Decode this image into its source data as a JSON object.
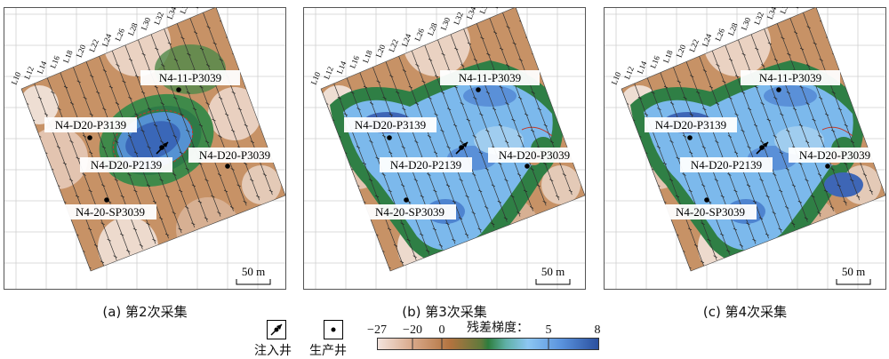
{
  "panels": [
    {
      "id": "a",
      "caption": "(a) 第2次采集",
      "fill": "low"
    },
    {
      "id": "b",
      "caption": "(b) 第3次采集",
      "fill": "high"
    },
    {
      "id": "c",
      "caption": "(c) 第4次采集",
      "fill": "high"
    }
  ],
  "survey_lines": [
    "L10",
    "L12",
    "L14",
    "L16",
    "L18",
    "L20",
    "L22",
    "L24",
    "L26",
    "L28",
    "L30",
    "L32",
    "L34",
    "L36",
    "L38",
    "L40"
  ],
  "wells": {
    "injection": {
      "name": "N4-D20-P2139"
    },
    "production": [
      {
        "name": "N4-11-P3039"
      },
      {
        "name": "N4-D20-P3139"
      },
      {
        "name": "N4-D20-P3039"
      },
      {
        "name": "N4-20-SP3039"
      }
    ]
  },
  "scale_bar": {
    "label": "50 m"
  },
  "legend": {
    "injection_label": "注入井",
    "production_label": "生产井",
    "colorbar_title": "残差梯度：",
    "ticks": [
      "−27",
      "−20",
      "0",
      "5",
      "8"
    ],
    "tick_values": [
      -27,
      -20,
      0,
      5,
      8
    ],
    "colors": {
      "min": "#f2e2dc",
      "mid_low": "#b77a4c",
      "zero": "#2f7f3f",
      "mid_high": "#7fbfef",
      "max": "#2a53a6"
    }
  }
}
